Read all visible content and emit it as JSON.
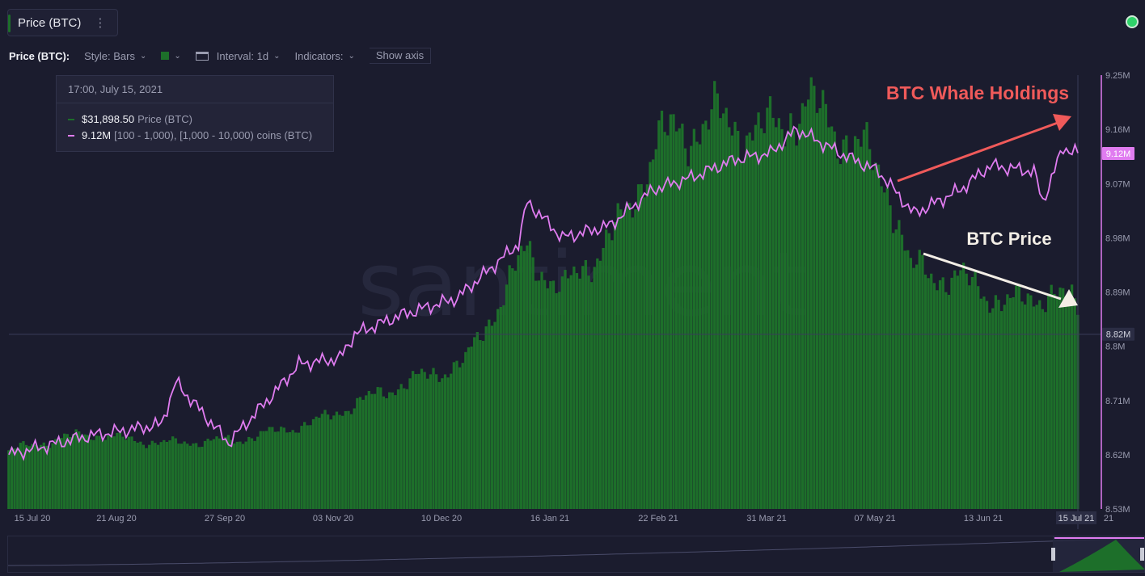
{
  "header": {
    "metric_chip": "Price (BTC)",
    "kebab": "⋮"
  },
  "toolbar": {
    "title": "Price (BTC):",
    "style": "Style: Bars",
    "interval": "Interval: 1d",
    "indicators": "Indicators:",
    "show_axis": "Show axis"
  },
  "tooltip": {
    "date": "17:00, July 15, 2021",
    "price_value": "$31,898.50",
    "price_label": "Price (BTC)",
    "holdings_value": "9.12M",
    "holdings_label": "[100 - 1,000), [1,000 - 10,000) coins (BTC)"
  },
  "colors": {
    "price_bars": "#1d6f2a",
    "holdings_line": "#e07cf0",
    "annotation_red": "#f05a5a",
    "annotation_white": "#f3eee6",
    "status": "#2fd36a"
  },
  "chart_data": {
    "type": "bar",
    "watermark": "santiment",
    "x_ticks": [
      "15 Jul 20",
      "21 Aug 20",
      "27 Sep 20",
      "03 Nov 20",
      "10 Dec 20",
      "16 Jan 21",
      "22 Feb 21",
      "31 Mar 21",
      "07 May 21",
      "13 Jun 21",
      "15 Jul 21",
      "21"
    ],
    "y_ticks_right": [
      "9.25M",
      "9.16M",
      "9.07M",
      "8.98M",
      "8.89M",
      "8.8M",
      "8.71M",
      "8.62M",
      "8.53M"
    ],
    "y_right_range": [
      8.53,
      9.25
    ],
    "current_labels": {
      "holdings": "9.12M",
      "crosshair": "8.82M"
    },
    "series": [
      {
        "name": "Price (BTC)",
        "kind": "bar",
        "x": [
          "2020-07-15",
          "2020-08-10",
          "2020-09-05",
          "2020-10-01",
          "2020-10-27",
          "2020-11-22",
          "2020-12-18",
          "2021-01-08",
          "2021-01-20",
          "2021-02-10",
          "2021-02-21",
          "2021-03-13",
          "2021-03-31",
          "2021-04-13",
          "2021-05-01",
          "2021-05-12",
          "2021-05-19",
          "2021-06-05",
          "2021-06-22",
          "2021-07-05",
          "2021-07-15"
        ],
        "values": [
          9200,
          11800,
          10300,
          10800,
          13500,
          18800,
          23000,
          40500,
          34000,
          45000,
          57500,
          61000,
          58800,
          63500,
          57000,
          50000,
          37500,
          36000,
          32000,
          34000,
          31898.5
        ]
      },
      {
        "name": "[100 - 1,000), [1,000 - 10,000) coins (BTC)",
        "kind": "line",
        "x": [
          "2020-07-15",
          "2020-08-10",
          "2020-09-05",
          "2020-09-10",
          "2020-09-28",
          "2020-10-15",
          "2020-10-22",
          "2020-11-05",
          "2020-11-10",
          "2020-11-25",
          "2020-12-15",
          "2021-01-05",
          "2021-01-08",
          "2021-01-20",
          "2021-02-05",
          "2021-02-20",
          "2021-03-05",
          "2021-03-20",
          "2021-04-01",
          "2021-04-10",
          "2021-04-25",
          "2021-05-08",
          "2021-05-20",
          "2021-06-05",
          "2021-06-15",
          "2021-06-30",
          "2021-07-03",
          "2021-07-10",
          "2021-07-15"
        ],
        "values": [
          8.62,
          8.65,
          8.67,
          8.74,
          8.64,
          8.73,
          8.77,
          8.78,
          8.82,
          8.85,
          8.88,
          8.97,
          9.04,
          8.98,
          9.0,
          9.06,
          9.08,
          9.11,
          9.12,
          9.16,
          9.12,
          9.09,
          9.02,
          9.06,
          9.1,
          9.09,
          9.04,
          9.13,
          9.12
        ]
      }
    ],
    "annotations": [
      "BTC Whale Holdings",
      "BTC Price"
    ]
  }
}
